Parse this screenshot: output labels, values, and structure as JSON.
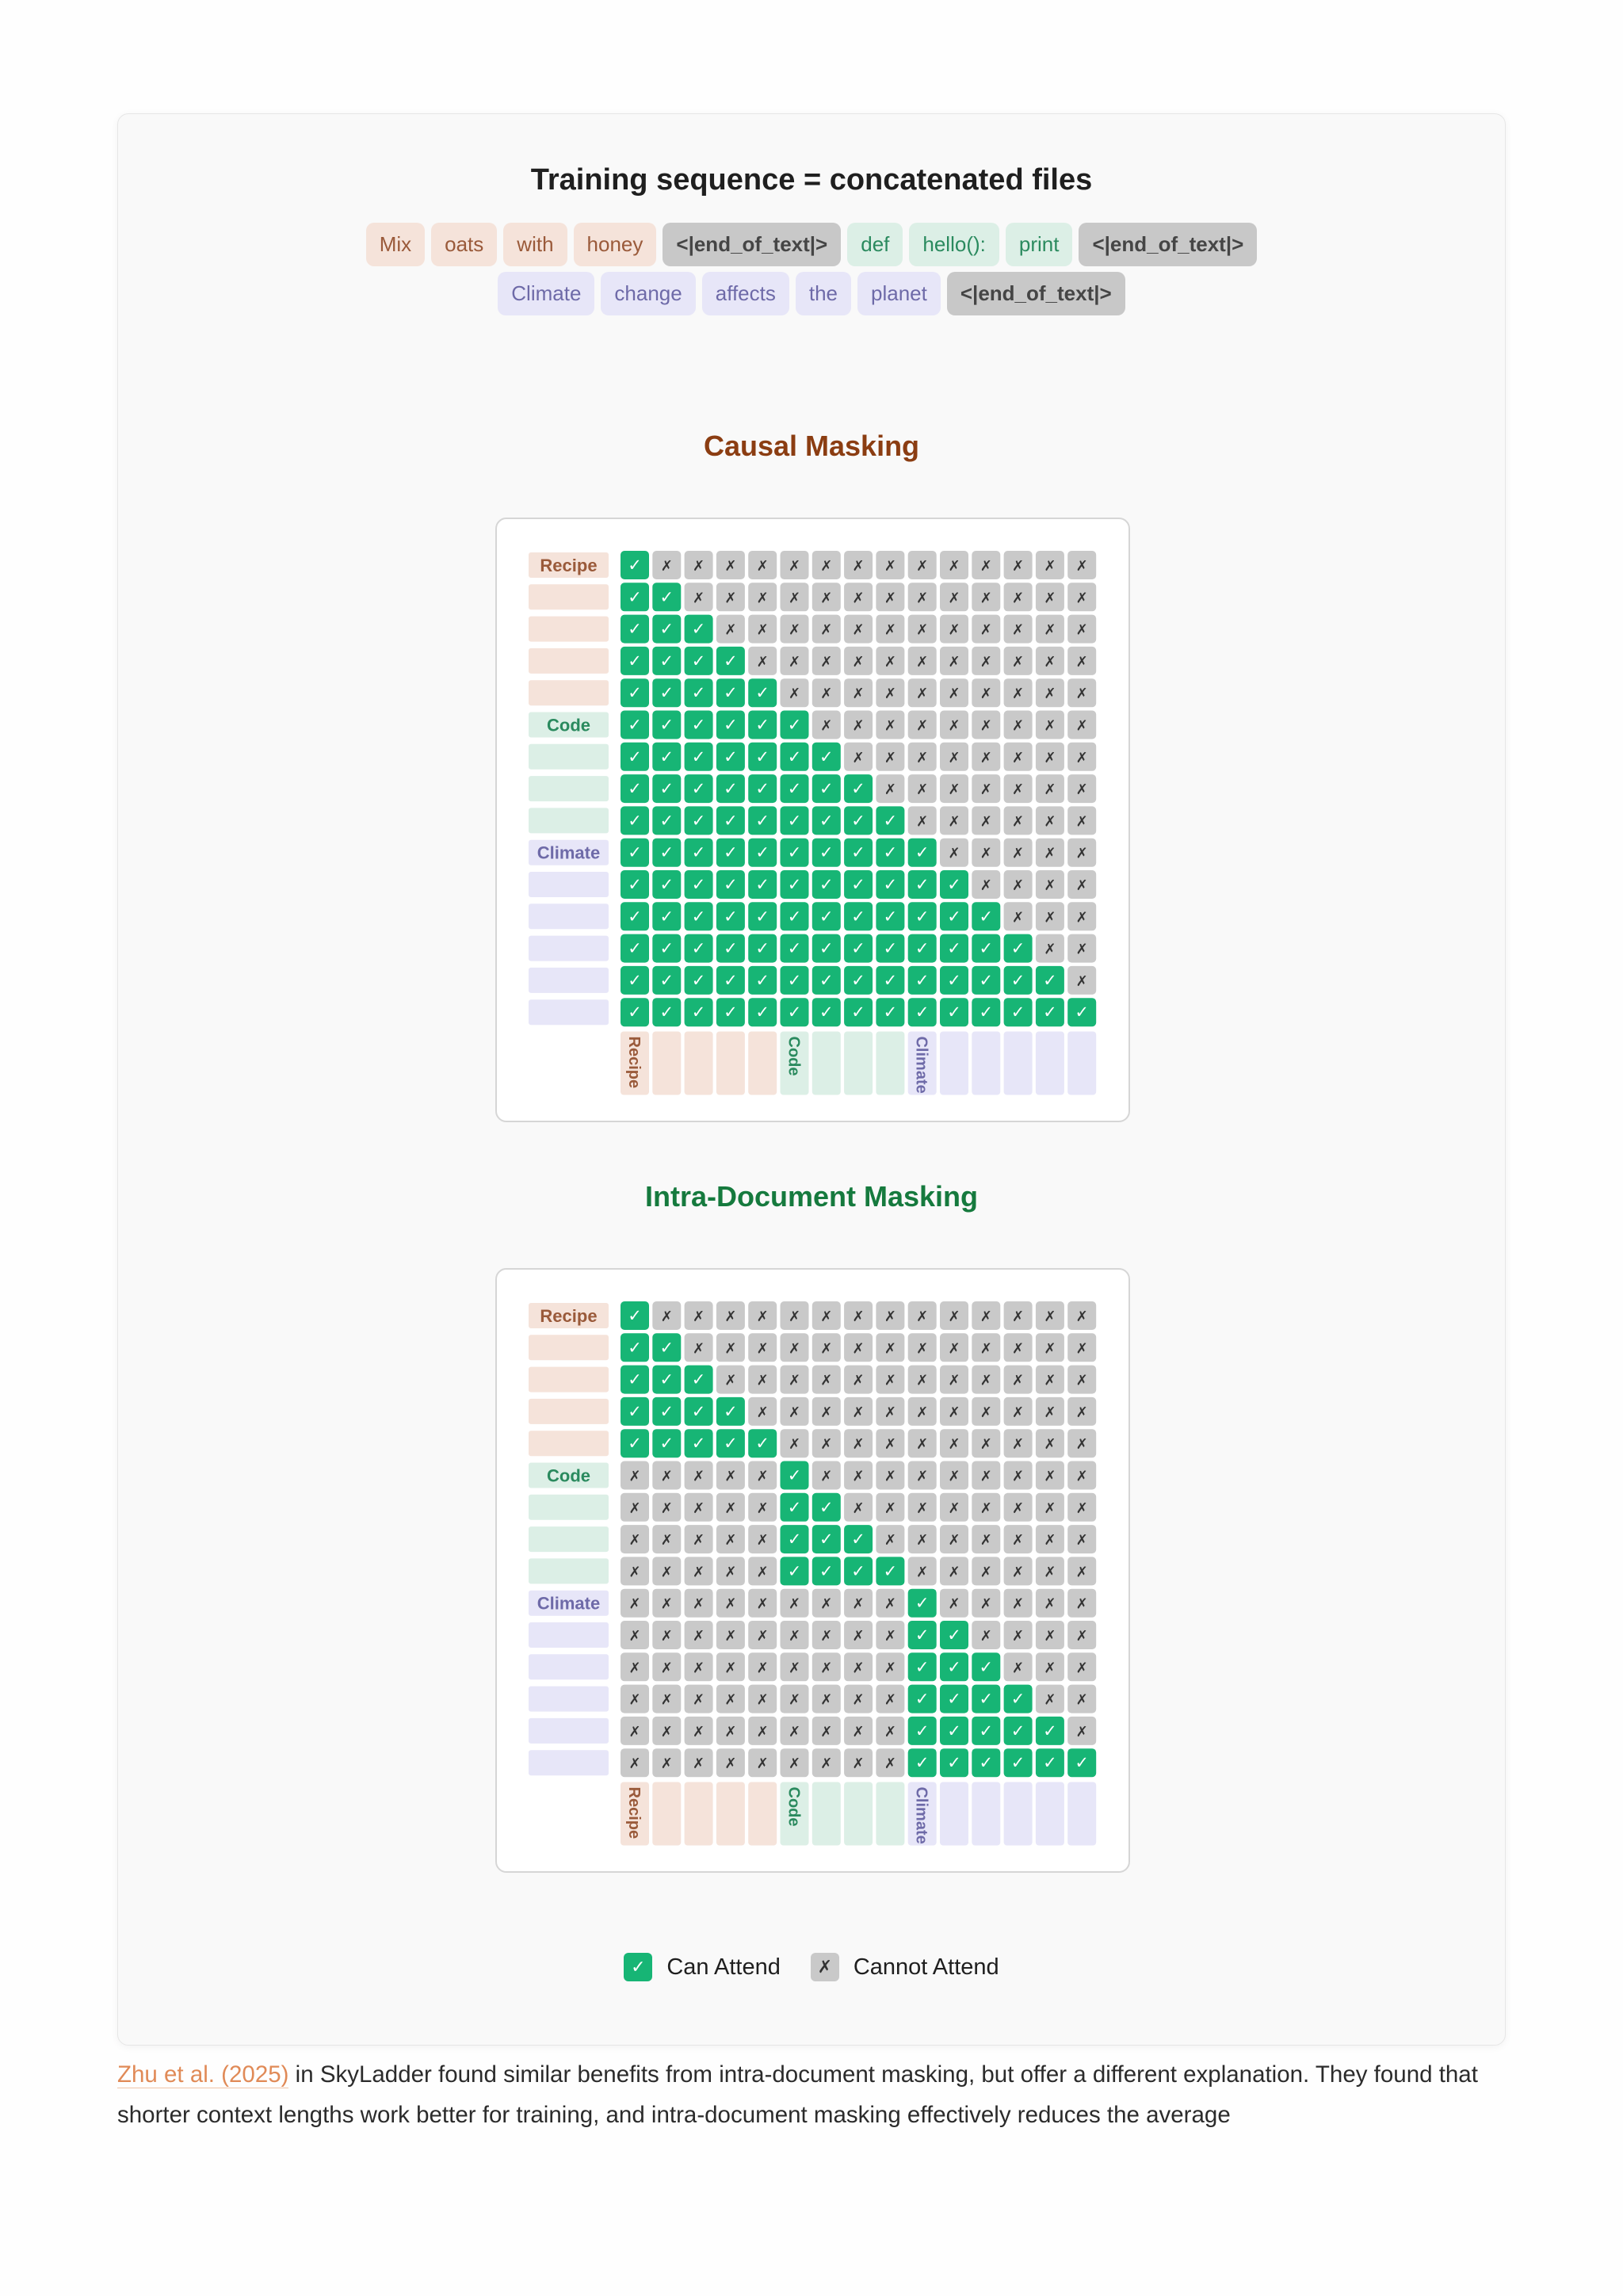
{
  "figure": {
    "title": "Training sequence = concatenated files",
    "token_rows": [
      [
        {
          "text": "Mix",
          "doc": "recipe"
        },
        {
          "text": "oats",
          "doc": "recipe"
        },
        {
          "text": "with",
          "doc": "recipe"
        },
        {
          "text": "honey",
          "doc": "recipe"
        },
        {
          "text": "<|end_of_text|>",
          "doc": "eot"
        },
        {
          "text": "def",
          "doc": "code"
        },
        {
          "text": "hello():",
          "doc": "code"
        },
        {
          "text": "print",
          "doc": "code"
        },
        {
          "text": "<|end_of_text|>",
          "doc": "eot"
        }
      ],
      [
        {
          "text": "Climate",
          "doc": "climate"
        },
        {
          "text": "change",
          "doc": "climate"
        },
        {
          "text": "affects",
          "doc": "climate"
        },
        {
          "text": "the",
          "doc": "climate"
        },
        {
          "text": "planet",
          "doc": "climate"
        },
        {
          "text": "<|end_of_text|>",
          "doc": "eot"
        }
      ]
    ],
    "documents": [
      {
        "id": "recipe",
        "label": "Recipe",
        "length": 5
      },
      {
        "id": "code",
        "label": "Code",
        "length": 4
      },
      {
        "id": "climate",
        "label": "Climate",
        "length": 6
      }
    ],
    "colors": {
      "recipe_bg": "#f5e3da",
      "recipe_fg": "#9a5a3a",
      "code_bg": "#dcefe6",
      "code_fg": "#2a8a5e",
      "climate_bg": "#e7e6f8",
      "climate_fg": "#6e6aa8",
      "can_attend": "#17b575",
      "cannot_attend": "#c9c9c9"
    },
    "matrices": [
      {
        "key": "causal",
        "title": "Causal Masking",
        "mode": "causal"
      },
      {
        "key": "intra",
        "title": "Intra-Document Masking",
        "mode": "intra"
      }
    ],
    "check_glyph": "✓",
    "cross_glyph": "✗",
    "legend": {
      "can_label": "Can Attend",
      "cannot_label": "Cannot Attend"
    }
  },
  "body": {
    "link_text": "Zhu et al. (2025)",
    "text": " in SkyLadder found similar benefits from intra-document masking, but offer a different explanation. They found that shorter context lengths work better for training, and intra-document masking effectively reduces the average"
  }
}
